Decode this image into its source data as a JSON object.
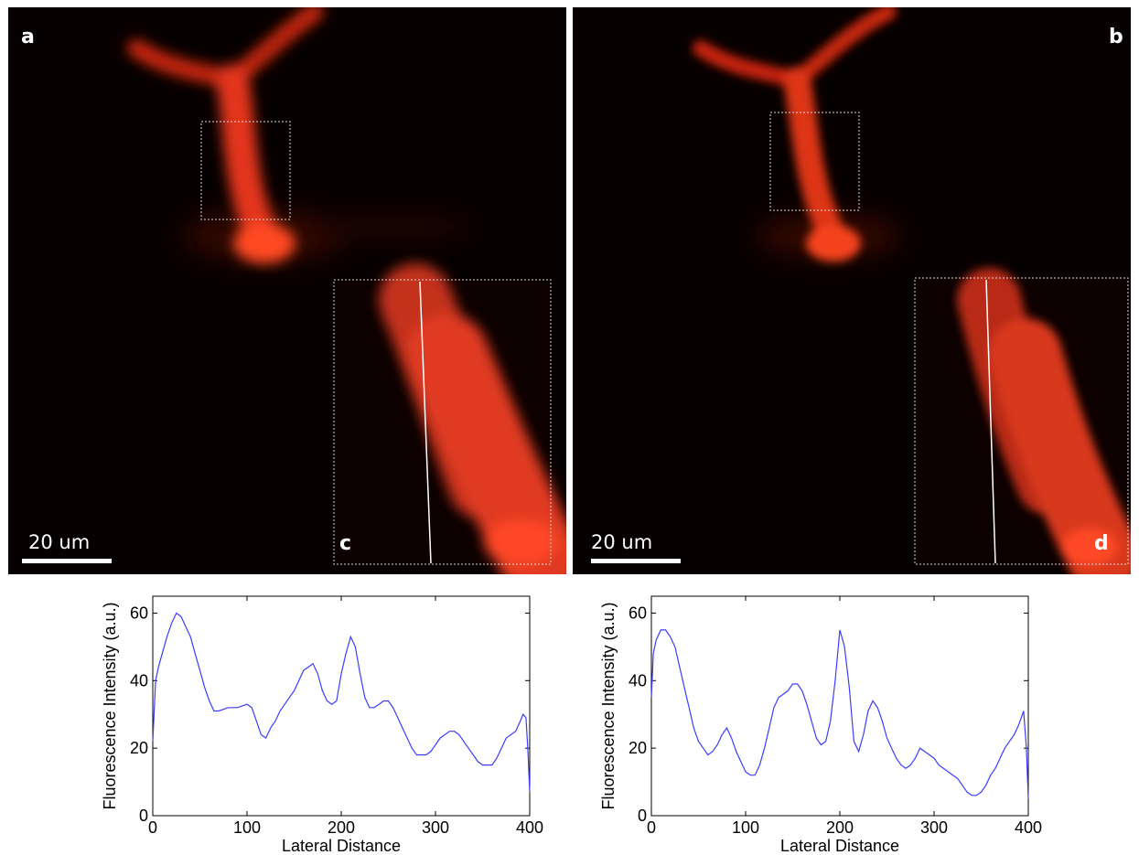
{
  "panels": {
    "a": {
      "letter": "a",
      "scale_label": "20 um"
    },
    "b": {
      "letter": "b",
      "scale_label": "20 um"
    },
    "c": {
      "letter": "c"
    },
    "d": {
      "letter": "d"
    }
  },
  "colors": {
    "signal": "#ff3a1a",
    "background": "#070000",
    "plot_line": "#3c3cff"
  },
  "chart_data": [
    {
      "type": "line",
      "panel": "c",
      "xlabel": "Lateral Distance",
      "ylabel": "Fluorescence Intensity (a.u.)",
      "xlim": [
        0,
        400
      ],
      "ylim": [
        0,
        65
      ],
      "xticks": [
        "0",
        "100",
        "200",
        "300",
        "400"
      ],
      "yticks": [
        "0",
        "20",
        "40",
        "60"
      ],
      "x": [
        0,
        3,
        6,
        10,
        15,
        20,
        25,
        30,
        35,
        40,
        45,
        50,
        55,
        60,
        65,
        70,
        80,
        90,
        100,
        105,
        110,
        115,
        120,
        125,
        130,
        135,
        140,
        145,
        150,
        155,
        160,
        165,
        170,
        175,
        180,
        185,
        190,
        195,
        200,
        205,
        210,
        215,
        220,
        225,
        230,
        235,
        240,
        245,
        250,
        255,
        260,
        265,
        270,
        275,
        280,
        285,
        290,
        295,
        300,
        305,
        310,
        315,
        320,
        325,
        330,
        335,
        340,
        345,
        350,
        355,
        360,
        365,
        370,
        375,
        380,
        385,
        390,
        393,
        396,
        398,
        400
      ],
      "y": [
        22,
        40,
        44,
        48,
        53,
        57,
        60,
        59,
        56,
        53,
        48,
        43,
        38,
        34,
        31,
        31,
        32,
        32,
        33,
        32,
        28,
        24,
        23,
        26,
        28,
        31,
        33,
        35,
        37,
        40,
        43,
        44,
        45,
        42,
        37,
        34,
        33,
        34,
        42,
        48,
        53,
        50,
        42,
        35,
        32,
        32,
        33,
        34,
        34,
        32,
        29,
        26,
        23,
        20,
        18,
        18,
        18,
        19,
        21,
        23,
        24,
        25,
        25,
        24,
        22,
        20,
        18,
        16,
        15,
        15,
        15,
        17,
        20,
        23,
        24,
        25,
        28,
        30,
        29,
        20,
        7
      ]
    },
    {
      "type": "line",
      "panel": "d",
      "xlabel": "Lateral Distance",
      "ylabel": "Fluorescence Intensity (a.u.)",
      "xlim": [
        0,
        400
      ],
      "ylim": [
        0,
        65
      ],
      "xticks": [
        "0",
        "100",
        "200",
        "300",
        "400"
      ],
      "yticks": [
        "0",
        "20",
        "40",
        "60"
      ],
      "x": [
        0,
        2,
        5,
        10,
        15,
        20,
        25,
        30,
        35,
        40,
        45,
        50,
        55,
        60,
        65,
        70,
        75,
        80,
        85,
        90,
        95,
        100,
        105,
        110,
        115,
        120,
        125,
        130,
        135,
        140,
        145,
        150,
        155,
        160,
        165,
        170,
        175,
        180,
        185,
        190,
        195,
        200,
        205,
        210,
        215,
        220,
        225,
        230,
        235,
        240,
        245,
        250,
        255,
        260,
        265,
        270,
        275,
        280,
        285,
        290,
        295,
        300,
        305,
        310,
        315,
        320,
        325,
        330,
        335,
        340,
        345,
        350,
        355,
        360,
        365,
        370,
        375,
        380,
        385,
        390,
        395,
        398,
        400
      ],
      "y": [
        35,
        48,
        52,
        55,
        55,
        53,
        50,
        44,
        38,
        32,
        26,
        22,
        20,
        18,
        19,
        21,
        24,
        26,
        23,
        19,
        16,
        13,
        12,
        12,
        15,
        20,
        26,
        32,
        35,
        36,
        37,
        39,
        39,
        37,
        33,
        28,
        23,
        21,
        22,
        28,
        40,
        55,
        50,
        38,
        22,
        19,
        24,
        31,
        34,
        32,
        28,
        23,
        20,
        17,
        15,
        14,
        15,
        17,
        20,
        19,
        18,
        17,
        15,
        14,
        13,
        12,
        11,
        9,
        7,
        6,
        6,
        7,
        9,
        12,
        14,
        17,
        20,
        22,
        24,
        27,
        31,
        20,
        5
      ]
    }
  ]
}
